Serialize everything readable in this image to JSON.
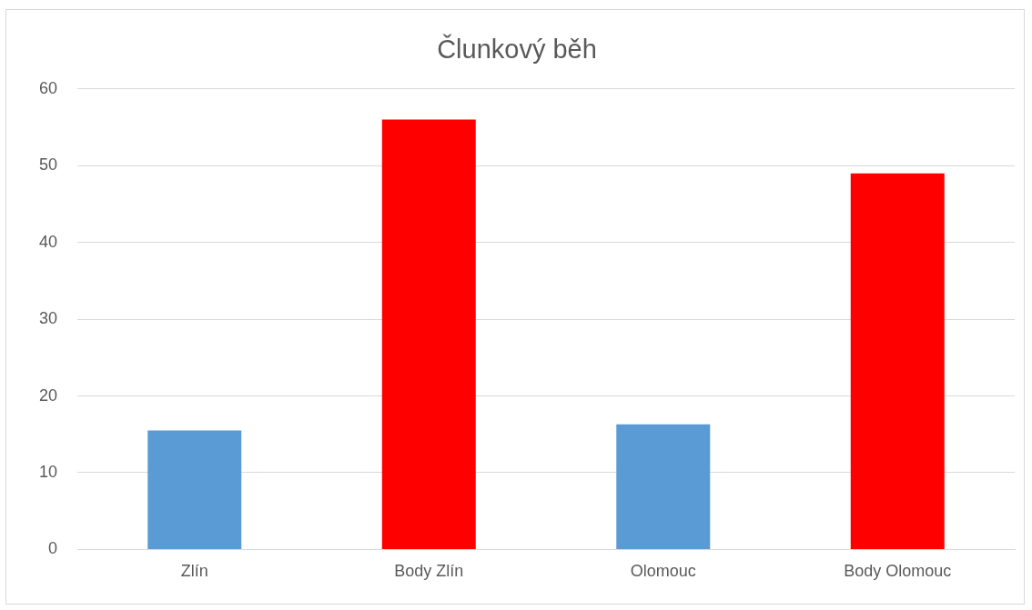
{
  "chart_data": {
    "type": "bar",
    "title": "Člunkový běh",
    "categories": [
      "Zlín",
      "Body Zlín",
      "Olomouc",
      "Body Olomouc"
    ],
    "values": [
      15.5,
      56,
      16.3,
      49
    ],
    "colors": [
      "#5b9bd5",
      "#ff0000",
      "#5b9bd5",
      "#ff0000"
    ],
    "ylim": [
      0,
      60
    ],
    "yticks": [
      0,
      10,
      20,
      30,
      40,
      50,
      60
    ],
    "grid": "y",
    "legend": false
  }
}
